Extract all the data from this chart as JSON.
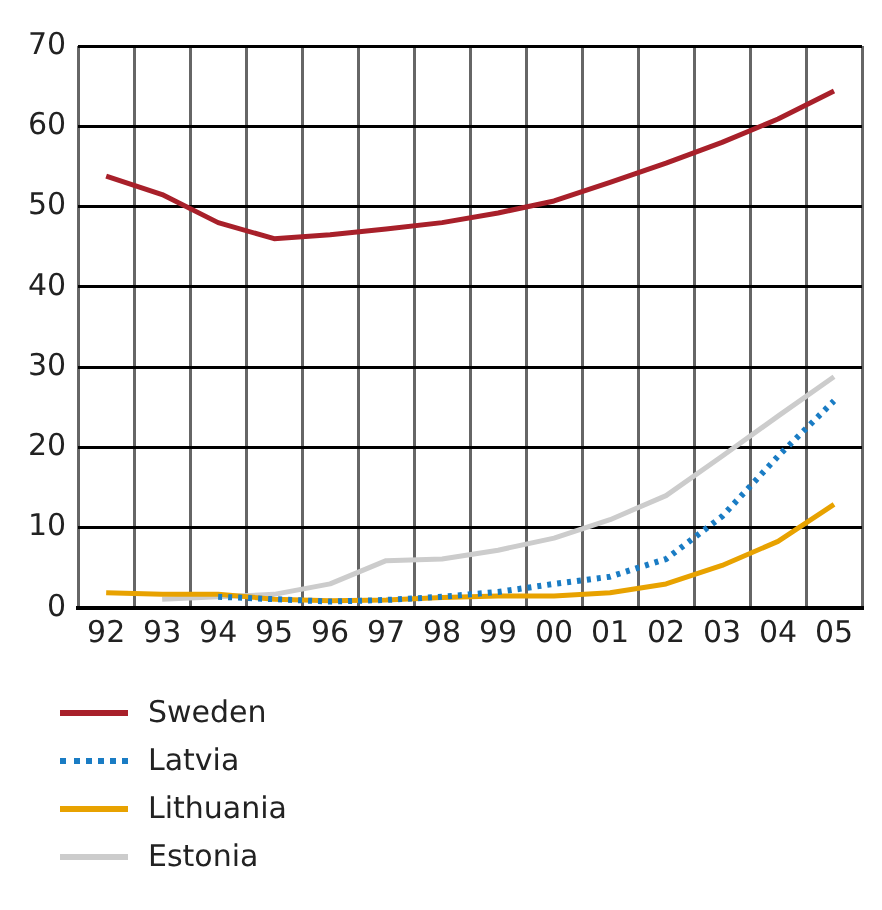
{
  "chart_data": {
    "type": "line",
    "categories": [
      "92",
      "93",
      "94",
      "95",
      "96",
      "97",
      "98",
      "99",
      "00",
      "01",
      "02",
      "03",
      "04",
      "05"
    ],
    "ylim": [
      0,
      70
    ],
    "yticks": [
      0,
      10,
      20,
      30,
      40,
      50,
      60,
      70
    ],
    "grid": true,
    "legend": "bottom",
    "marker": "none",
    "series": [
      {
        "name": "Sweden",
        "color": "#a8202a",
        "line_style": "solid",
        "values": [
          53.8,
          51.5,
          48.0,
          46.0,
          46.5,
          47.2,
          48.0,
          49.2,
          50.7,
          53.0,
          55.4,
          58.0,
          60.9,
          64.4
        ]
      },
      {
        "name": "Latvia",
        "color": "#1a7cc4",
        "line_style": "dotted",
        "values": [
          null,
          null,
          1.4,
          1.1,
          0.8,
          1.0,
          1.4,
          2.0,
          3.0,
          3.9,
          6.1,
          11.4,
          18.9,
          25.8
        ]
      },
      {
        "name": "Lithuania",
        "color": "#e8a200",
        "line_style": "solid",
        "values": [
          1.9,
          1.7,
          1.7,
          1.1,
          0.9,
          1.0,
          1.3,
          1.5,
          1.5,
          1.9,
          3.0,
          5.3,
          8.3,
          12.9
        ]
      },
      {
        "name": "Estonia",
        "color": "#cccccc",
        "line_style": "solid",
        "values": [
          null,
          1.1,
          1.4,
          1.7,
          3.0,
          5.9,
          6.1,
          7.2,
          8.7,
          11.0,
          14.0,
          18.9,
          23.9,
          28.8
        ]
      }
    ]
  }
}
